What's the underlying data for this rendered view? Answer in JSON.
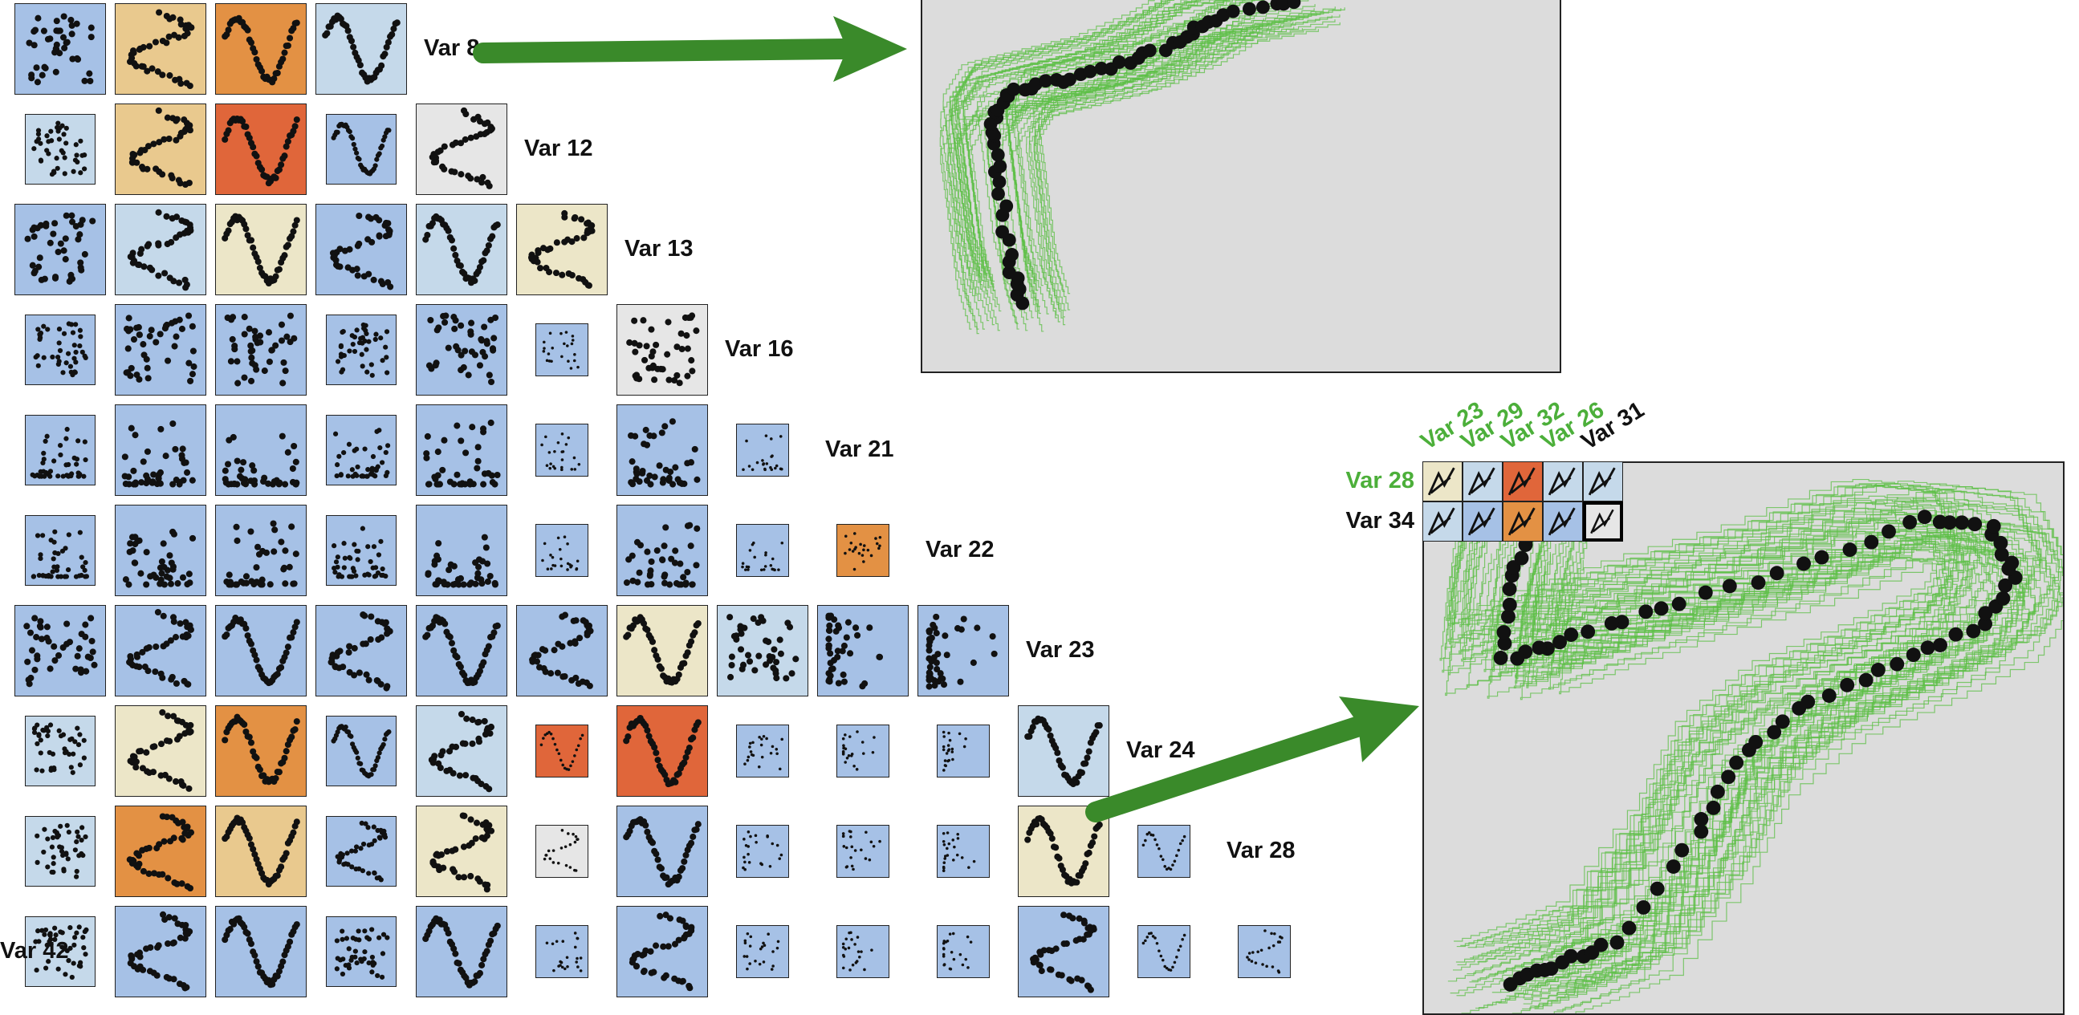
{
  "colors": {
    "blue": "#a6c1e6",
    "tan": "#e9c98e",
    "orange": "#e39144",
    "dark_orange": "#e0663a",
    "beige": "#ece6c8",
    "light_gray": "#e6e6e6",
    "light_blue": "#c5d9ea",
    "panel_bg": "#dcdcdc",
    "green": "#3a8a2a",
    "highlight_green": "#4caf3a"
  },
  "matrix": {
    "row_labels": [
      "Var 8",
      "Var 12",
      "Var 13",
      "Var 16",
      "Var 21",
      "Var 22",
      "Var 23",
      "Var 24",
      "Var 28",
      "Var 42"
    ],
    "rows": [
      [
        [
          "blue",
          "large",
          "cloud"
        ],
        [
          "tan",
          "large",
          "snake"
        ],
        [
          "orange",
          "large",
          "wave"
        ],
        [
          "light_blue",
          "large",
          "wave"
        ]
      ],
      [
        [
          "light_blue",
          "medium",
          "cloud"
        ],
        [
          "tan",
          "large",
          "snake"
        ],
        [
          "dark_orange",
          "large",
          "wave"
        ],
        [
          "blue",
          "medium",
          "wave"
        ],
        [
          "light_gray",
          "large",
          "snake"
        ]
      ],
      [
        [
          "blue",
          "large",
          "cloud"
        ],
        [
          "light_blue",
          "large",
          "snake"
        ],
        [
          "beige",
          "large",
          "wave"
        ],
        [
          "blue",
          "large",
          "snake"
        ],
        [
          "light_blue",
          "large",
          "wave"
        ],
        [
          "beige",
          "large",
          "snake"
        ]
      ],
      [
        [
          "blue",
          "medium",
          "cloud"
        ],
        [
          "blue",
          "large",
          "cloud"
        ],
        [
          "blue",
          "large",
          "cloud"
        ],
        [
          "blue",
          "medium",
          "cloud"
        ],
        [
          "blue",
          "large",
          "cloud"
        ],
        [
          "blue",
          "small",
          "cloud"
        ],
        [
          "light_gray",
          "large",
          "cloud"
        ]
      ],
      [
        [
          "blue",
          "medium",
          "floor"
        ],
        [
          "blue",
          "large",
          "floor"
        ],
        [
          "blue",
          "large",
          "floor"
        ],
        [
          "blue",
          "medium",
          "floor"
        ],
        [
          "blue",
          "large",
          "floor"
        ],
        [
          "blue",
          "small",
          "floor"
        ],
        [
          "blue",
          "large",
          "floor"
        ],
        [
          "blue",
          "small",
          "floor"
        ]
      ],
      [
        [
          "blue",
          "medium",
          "floor"
        ],
        [
          "blue",
          "large",
          "floor"
        ],
        [
          "blue",
          "large",
          "floor"
        ],
        [
          "blue",
          "medium",
          "floor"
        ],
        [
          "blue",
          "large",
          "floor"
        ],
        [
          "blue",
          "small",
          "floor"
        ],
        [
          "blue",
          "large",
          "floor"
        ],
        [
          "blue",
          "small",
          "floor"
        ],
        [
          "orange",
          "small",
          "cloud"
        ]
      ],
      [
        [
          "blue",
          "large",
          "cloud"
        ],
        [
          "blue",
          "large",
          "snake"
        ],
        [
          "blue",
          "large",
          "wave"
        ],
        [
          "blue",
          "large",
          "snake"
        ],
        [
          "blue",
          "large",
          "wave"
        ],
        [
          "blue",
          "large",
          "snake"
        ],
        [
          "beige",
          "large",
          "wave"
        ],
        [
          "light_blue",
          "large",
          "cloud"
        ],
        [
          "blue",
          "large",
          "column"
        ],
        [
          "blue",
          "large",
          "column"
        ]
      ],
      [
        [
          "light_blue",
          "medium",
          "cloud"
        ],
        [
          "beige",
          "large",
          "snake"
        ],
        [
          "orange",
          "large",
          "wave"
        ],
        [
          "blue",
          "medium",
          "wave"
        ],
        [
          "light_blue",
          "large",
          "snake"
        ],
        [
          "dark_orange",
          "small",
          "wave"
        ],
        [
          "dark_orange",
          "large",
          "wave"
        ],
        [
          "blue",
          "small",
          "cloud"
        ],
        [
          "blue",
          "small",
          "column"
        ],
        [
          "blue",
          "small",
          "column"
        ],
        [
          "light_blue",
          "large",
          "wave"
        ]
      ],
      [
        [
          "light_blue",
          "medium",
          "cloud"
        ],
        [
          "orange",
          "large",
          "snake"
        ],
        [
          "tan",
          "large",
          "wave"
        ],
        [
          "blue",
          "medium",
          "snake"
        ],
        [
          "beige",
          "large",
          "snake"
        ],
        [
          "light_gray",
          "small",
          "snake"
        ],
        [
          "blue",
          "large",
          "wave"
        ],
        [
          "blue",
          "small",
          "cloud"
        ],
        [
          "blue",
          "small",
          "column"
        ],
        [
          "blue",
          "small",
          "column"
        ],
        [
          "beige",
          "large",
          "wave"
        ],
        [
          "blue",
          "small",
          "wave"
        ]
      ],
      [
        [
          "light_blue",
          "medium",
          "cloud"
        ],
        [
          "blue",
          "large",
          "snake"
        ],
        [
          "blue",
          "large",
          "wave"
        ],
        [
          "blue",
          "medium",
          "cloud"
        ],
        [
          "blue",
          "large",
          "wave"
        ],
        [
          "blue",
          "small",
          "cloud"
        ],
        [
          "blue",
          "large",
          "snake"
        ],
        [
          "blue",
          "small",
          "cloud"
        ],
        [
          "blue",
          "small",
          "column"
        ],
        [
          "blue",
          "small",
          "column"
        ],
        [
          "blue",
          "large",
          "snake"
        ],
        [
          "blue",
          "small",
          "wave"
        ],
        [
          "blue",
          "small",
          "snake"
        ]
      ]
    ]
  },
  "mini_matrix": {
    "col_labels": [
      {
        "text": "Var 23",
        "color": "highlight_green"
      },
      {
        "text": "Var 29",
        "color": "highlight_green"
      },
      {
        "text": "Var 32",
        "color": "highlight_green"
      },
      {
        "text": "Var 26",
        "color": "highlight_green"
      },
      {
        "text": "Var 31",
        "color": "black"
      }
    ],
    "row_labels": [
      {
        "text": "Var 28",
        "color": "highlight_green"
      },
      {
        "text": "Var 34",
        "color": "black"
      }
    ],
    "cells": [
      [
        "beige",
        "light_blue",
        "dark_orange",
        "light_blue",
        "light_blue"
      ],
      [
        "light_blue",
        "blue",
        "orange",
        "blue",
        "light_gray"
      ]
    ],
    "selected": [
      1,
      4
    ]
  }
}
